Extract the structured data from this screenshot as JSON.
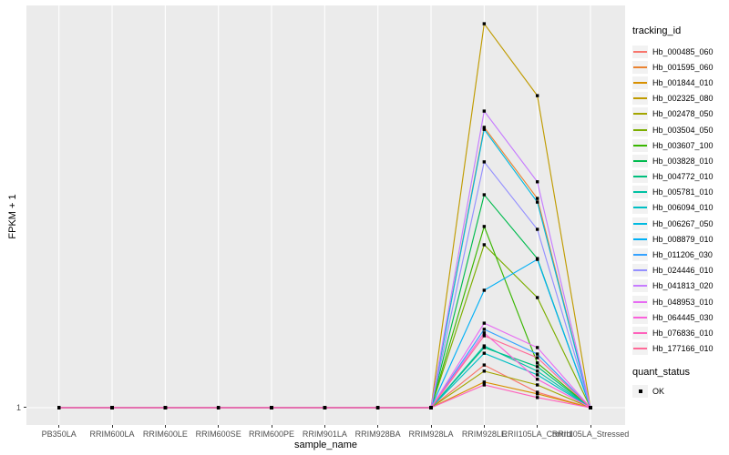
{
  "figure": {
    "bg": "#FFFFFF",
    "panel_bg": "#EBEBEB",
    "grid_color": "#FFFFFF",
    "tick_label_color": "#4D4D4D",
    "point_color": "#000000",
    "legend_key_bg": "#F2F2F2"
  },
  "chart_data": {
    "type": "line",
    "title": "",
    "xlabel": "sample_name",
    "ylabel": "FPKM + 1",
    "categories": [
      "PB350LA",
      "RRIM600LA",
      "RRIM600LE",
      "RRIM600SE",
      "RRIM600PE",
      "RRIM901LA",
      "RRIM928BA",
      "RRIM928LA",
      "RRIM928LE",
      "RRII105LA_Control",
      "RRII105LA_Stressed"
    ],
    "y_ticks": [
      1
    ],
    "ylim": [
      1,
      100
    ],
    "y_scale_note": "y axis labels only '1'; higher values estimated on a linear 1-100 scale where 100 is the panel top",
    "grid": "major-x-and-y1",
    "legend_title": "tracking_id",
    "legend_position": "right",
    "point_shape": "small black square (quant_status OK)",
    "series": [
      {
        "name": "Hb_000485_060",
        "color": "#F8766D",
        "values": [
          1,
          1,
          1,
          1,
          1,
          1,
          1,
          1,
          11.5,
          4.8,
          1
        ]
      },
      {
        "name": "Hb_001595_060",
        "color": "#EA8331",
        "values": [
          1,
          1,
          1,
          1,
          1,
          1,
          1,
          1,
          70.0,
          52.5,
          1
        ]
      },
      {
        "name": "Hb_001844_010",
        "color": "#D89000",
        "values": [
          1,
          1,
          1,
          1,
          1,
          1,
          1,
          1,
          7.3,
          4.4,
          1
        ]
      },
      {
        "name": "Hb_002325_080",
        "color": "#C09B00",
        "values": [
          1,
          1,
          1,
          1,
          1,
          1,
          1,
          1,
          95.5,
          77.8,
          1
        ]
      },
      {
        "name": "Hb_002478_050",
        "color": "#A3A500",
        "values": [
          1,
          1,
          1,
          1,
          1,
          1,
          1,
          1,
          10.0,
          6.6,
          1
        ]
      },
      {
        "name": "Hb_003504_050",
        "color": "#7CAE00",
        "values": [
          1,
          1,
          1,
          1,
          1,
          1,
          1,
          1,
          41.1,
          28.1,
          1
        ]
      },
      {
        "name": "Hb_003607_100",
        "color": "#39B600",
        "values": [
          1,
          1,
          1,
          1,
          1,
          1,
          1,
          1,
          45.6,
          12.0,
          1
        ]
      },
      {
        "name": "Hb_003828_010",
        "color": "#00BB4E",
        "values": [
          1,
          1,
          1,
          1,
          1,
          1,
          1,
          1,
          53.4,
          37.7,
          1
        ]
      },
      {
        "name": "Hb_004772_010",
        "color": "#00BF7D",
        "values": [
          1,
          1,
          1,
          1,
          1,
          1,
          1,
          1,
          15.8,
          11.1,
          1
        ]
      },
      {
        "name": "Hb_005781_010",
        "color": "#00C1A3",
        "values": [
          1,
          1,
          1,
          1,
          1,
          1,
          1,
          1,
          16.2,
          10.0,
          1
        ]
      },
      {
        "name": "Hb_006094_010",
        "color": "#00BFC4",
        "values": [
          1,
          1,
          1,
          1,
          1,
          1,
          1,
          1,
          14.4,
          9.1,
          1
        ]
      },
      {
        "name": "Hb_006267_050",
        "color": "#00BAE0",
        "values": [
          1,
          1,
          1,
          1,
          1,
          1,
          1,
          1,
          69.5,
          51.6,
          1
        ]
      },
      {
        "name": "Hb_008879_010",
        "color": "#00B0F6",
        "values": [
          1,
          1,
          1,
          1,
          1,
          1,
          1,
          1,
          29.9,
          37.5,
          1
        ]
      },
      {
        "name": "Hb_011206_030",
        "color": "#35A2FF",
        "values": [
          1,
          1,
          1,
          1,
          1,
          1,
          1,
          1,
          20.3,
          14.2,
          1
        ]
      },
      {
        "name": "Hb_024446_010",
        "color": "#9590FF",
        "values": [
          1,
          1,
          1,
          1,
          1,
          1,
          1,
          1,
          61.5,
          44.9,
          1
        ]
      },
      {
        "name": "Hb_041813_020",
        "color": "#C77CFF",
        "values": [
          1,
          1,
          1,
          1,
          1,
          1,
          1,
          1,
          74.0,
          56.6,
          1
        ]
      },
      {
        "name": "Hb_048953_010",
        "color": "#E76BF3",
        "values": [
          1,
          1,
          1,
          1,
          1,
          1,
          1,
          1,
          21.8,
          15.8,
          1
        ]
      },
      {
        "name": "Hb_064445_030",
        "color": "#FA62DB",
        "values": [
          1,
          1,
          1,
          1,
          1,
          1,
          1,
          1,
          19.4,
          8.0,
          1
        ]
      },
      {
        "name": "Hb_076836_010",
        "color": "#FF62BC",
        "values": [
          1,
          1,
          1,
          1,
          1,
          1,
          1,
          1,
          6.6,
          3.5,
          1
        ]
      },
      {
        "name": "Hb_177166_010",
        "color": "#FF6A98",
        "values": [
          1,
          1,
          1,
          1,
          1,
          1,
          1,
          1,
          18.7,
          13.3,
          1
        ]
      }
    ],
    "quant_status": {
      "title": "quant_status",
      "items": [
        "OK"
      ]
    }
  }
}
